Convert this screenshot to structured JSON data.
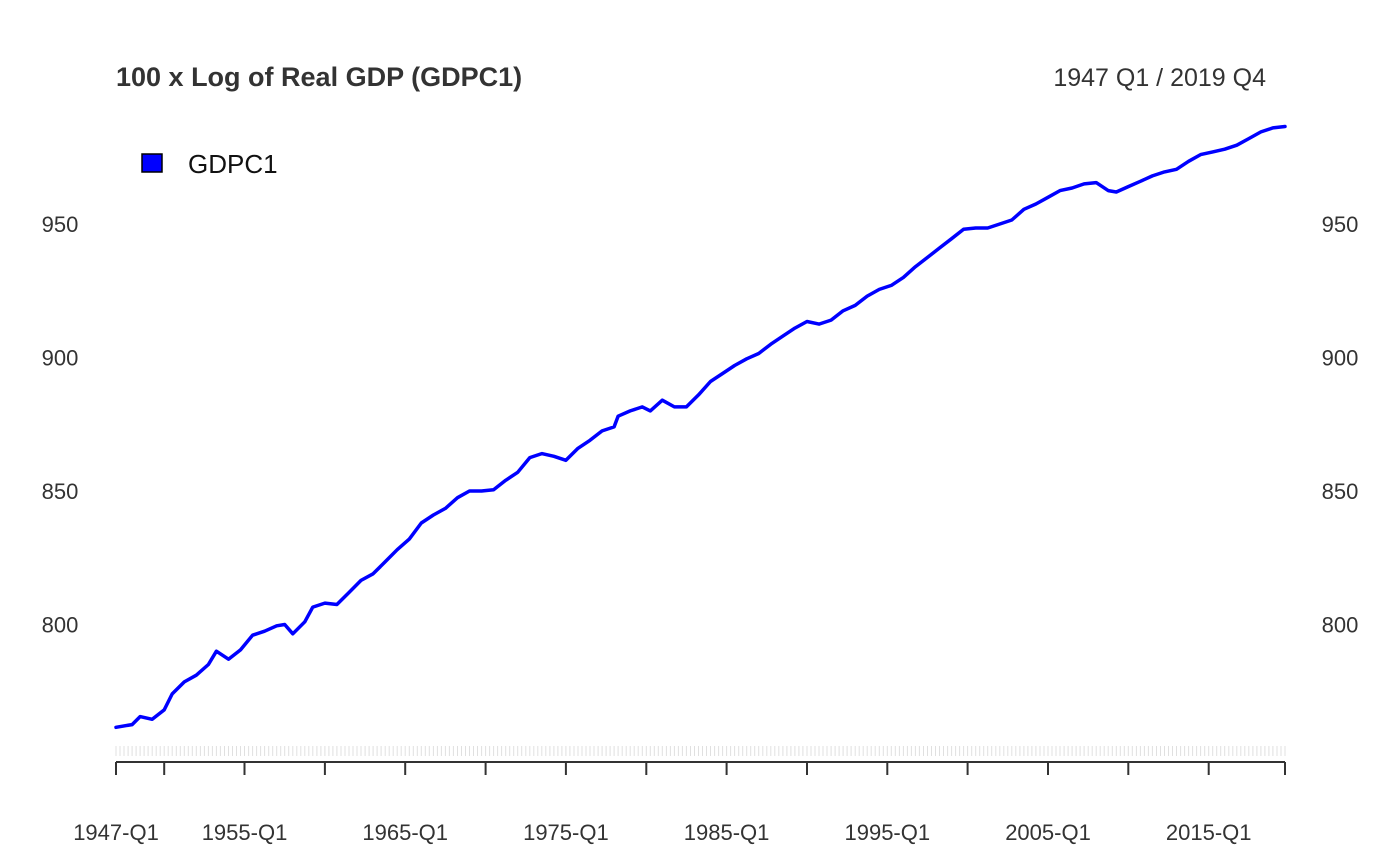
{
  "chart_data": {
    "type": "line",
    "title": "100 x Log of Real GDP (GDPC1)",
    "date_range": "1947 Q1 / 2019 Q4",
    "legend": {
      "position": "top-left",
      "entries": [
        "GDPC1"
      ]
    },
    "series": [
      {
        "name": "GDPC1",
        "color": "#0000ff",
        "points": [
          [
            "1947-Q1",
            761.5
          ],
          [
            "1948-Q1",
            762.5
          ],
          [
            "1948-Q3",
            765.5
          ],
          [
            "1949-Q2",
            764.5
          ],
          [
            "1950-Q1",
            768.0
          ],
          [
            "1950-Q3",
            774.0
          ],
          [
            "1951-Q2",
            778.5
          ],
          [
            "1952-Q1",
            781.0
          ],
          [
            "1952-Q4",
            785.0
          ],
          [
            "1953-Q2",
            790.0
          ],
          [
            "1954-Q1",
            787.0
          ],
          [
            "1954-Q4",
            790.5
          ],
          [
            "1955-Q3",
            796.0
          ],
          [
            "1956-Q2",
            797.5
          ],
          [
            "1957-Q1",
            799.5
          ],
          [
            "1957-Q3",
            800.0
          ],
          [
            "1958-Q1",
            796.5
          ],
          [
            "1958-Q4",
            801.0
          ],
          [
            "1959-Q2",
            806.5
          ],
          [
            "1960-Q1",
            808.0
          ],
          [
            "1960-Q4",
            807.5
          ],
          [
            "1961-Q3",
            812.0
          ],
          [
            "1962-Q2",
            816.5
          ],
          [
            "1963-Q1",
            819.0
          ],
          [
            "1963-Q4",
            823.5
          ],
          [
            "1964-Q3",
            828.0
          ],
          [
            "1965-Q2",
            832.0
          ],
          [
            "1966-Q1",
            838.0
          ],
          [
            "1966-Q4",
            841.0
          ],
          [
            "1967-Q3",
            843.5
          ],
          [
            "1968-Q2",
            847.5
          ],
          [
            "1969-Q1",
            850.0
          ],
          [
            "1969-Q4",
            850.0
          ],
          [
            "1970-Q3",
            850.5
          ],
          [
            "1971-Q2",
            854.0
          ],
          [
            "1972-Q1",
            857.0
          ],
          [
            "1972-Q4",
            862.5
          ],
          [
            "1973-Q3",
            864.0
          ],
          [
            "1974-Q2",
            863.0
          ],
          [
            "1975-Q1",
            861.5
          ],
          [
            "1975-Q4",
            866.0
          ],
          [
            "1976-Q3",
            869.0
          ],
          [
            "1977-Q2",
            872.5
          ],
          [
            "1978-Q1",
            874.0
          ],
          [
            "1978-Q2",
            878.0
          ],
          [
            "1979-Q1",
            880.0
          ],
          [
            "1979-Q4",
            881.5
          ],
          [
            "1980-Q2",
            880.0
          ],
          [
            "1981-Q1",
            884.0
          ],
          [
            "1981-Q4",
            881.5
          ],
          [
            "1982-Q3",
            881.5
          ],
          [
            "1983-Q2",
            886.0
          ],
          [
            "1984-Q1",
            891.0
          ],
          [
            "1984-Q4",
            894.0
          ],
          [
            "1985-Q3",
            897.0
          ],
          [
            "1986-Q2",
            899.5
          ],
          [
            "1987-Q1",
            901.5
          ],
          [
            "1987-Q4",
            905.0
          ],
          [
            "1988-Q3",
            908.0
          ],
          [
            "1989-Q2",
            911.0
          ],
          [
            "1990-Q1",
            913.5
          ],
          [
            "1990-Q4",
            912.5
          ],
          [
            "1991-Q3",
            914.0
          ],
          [
            "1992-Q2",
            917.5
          ],
          [
            "1993-Q1",
            919.5
          ],
          [
            "1993-Q4",
            923.0
          ],
          [
            "1994-Q3",
            925.5
          ],
          [
            "1995-Q2",
            927.0
          ],
          [
            "1996-Q1",
            930.0
          ],
          [
            "1996-Q4",
            934.0
          ],
          [
            "1997-Q3",
            937.5
          ],
          [
            "1998-Q2",
            941.0
          ],
          [
            "1999-Q1",
            944.5
          ],
          [
            "1999-Q4",
            948.0
          ],
          [
            "2000-Q3",
            948.5
          ],
          [
            "2001-Q2",
            948.5
          ],
          [
            "2002-Q1",
            950.0
          ],
          [
            "2002-Q4",
            951.5
          ],
          [
            "2003-Q3",
            955.5
          ],
          [
            "2004-Q2",
            957.5
          ],
          [
            "2005-Q1",
            960.0
          ],
          [
            "2005-Q4",
            962.5
          ],
          [
            "2006-Q3",
            963.5
          ],
          [
            "2007-Q2",
            965.0
          ],
          [
            "2008-Q1",
            965.5
          ],
          [
            "2008-Q4",
            962.5
          ],
          [
            "2009-Q2",
            962.0
          ],
          [
            "2010-Q1",
            964.0
          ],
          [
            "2010-Q4",
            966.0
          ],
          [
            "2011-Q3",
            968.0
          ],
          [
            "2012-Q2",
            969.5
          ],
          [
            "2013-Q1",
            970.5
          ],
          [
            "2013-Q4",
            973.5
          ],
          [
            "2014-Q3",
            976.0
          ],
          [
            "2015-Q2",
            977.0
          ],
          [
            "2016-Q1",
            978.0
          ],
          [
            "2016-Q4",
            979.5
          ],
          [
            "2017-Q3",
            982.0
          ],
          [
            "2018-Q2",
            984.5
          ],
          [
            "2019-Q1",
            986.0
          ],
          [
            "2019-Q4",
            986.5
          ]
        ]
      }
    ],
    "yticks": [
      800,
      850,
      900,
      950
    ],
    "ytick_labels": [
      "800",
      "850",
      "900",
      "950"
    ],
    "xtick_labels": [
      "1947-Q1",
      "1955-Q1",
      "1965-Q1",
      "1975-Q1",
      "1985-Q1",
      "1995-Q1",
      "2005-Q1",
      "2015-Q1"
    ],
    "ylim": [
      750,
      988
    ],
    "grid": false
  }
}
